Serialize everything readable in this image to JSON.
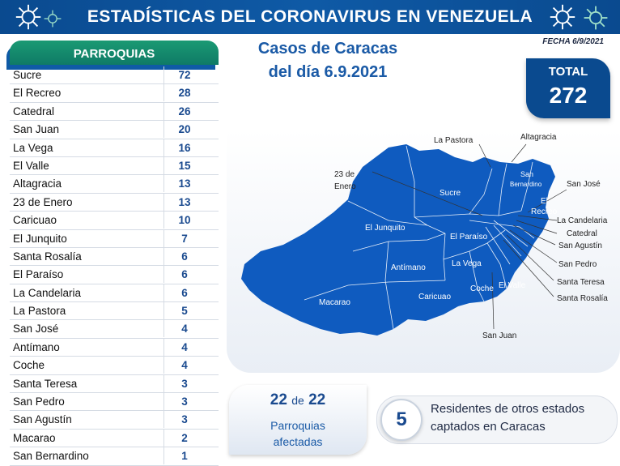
{
  "header": {
    "title": "ESTADÍSTICAS DEL CORONAVIRUS EN VENEZUELA"
  },
  "date_label": "FECHA 6/9/2021",
  "table": {
    "header": "PARROQUIAS",
    "rows": [
      {
        "name": "Sucre",
        "value": "72"
      },
      {
        "name": "El Recreo",
        "value": "28"
      },
      {
        "name": "Catedral",
        "value": "26"
      },
      {
        "name": "San Juan",
        "value": "20"
      },
      {
        "name": "La Vega",
        "value": "16"
      },
      {
        "name": "El Valle",
        "value": "15"
      },
      {
        "name": "Altagracia",
        "value": "13"
      },
      {
        "name": "23 de Enero",
        "value": "13"
      },
      {
        "name": "Caricuao",
        "value": "10"
      },
      {
        "name": "El Junquito",
        "value": "7"
      },
      {
        "name": "Santa Rosalía",
        "value": "6"
      },
      {
        "name": "El Paraíso",
        "value": "6"
      },
      {
        "name": "La Candelaria",
        "value": "6"
      },
      {
        "name": "La Pastora",
        "value": "5"
      },
      {
        "name": "San José",
        "value": "4"
      },
      {
        "name": "Antímano",
        "value": "4"
      },
      {
        "name": "Coche",
        "value": "4"
      },
      {
        "name": "Santa Teresa",
        "value": "3"
      },
      {
        "name": "San Pedro",
        "value": "3"
      },
      {
        "name": "San Agustín",
        "value": "3"
      },
      {
        "name": "Macarao",
        "value": "2"
      },
      {
        "name": "San Bernardino",
        "value": "1"
      }
    ]
  },
  "caracas": {
    "line1": "Casos de Caracas",
    "line2": "del día 6.9.2021"
  },
  "total": {
    "label": "TOTAL",
    "value": "272"
  },
  "map": {
    "labels_outside": {
      "la_pastora": "La Pastora",
      "altagracia": "Altagracia",
      "enero_1": "23 de",
      "enero_2": "Enero",
      "san_jose": "San José",
      "la_candelaria": "La Candelaria",
      "catedral": "Catedral",
      "san_agustin": "San Agustín",
      "san_pedro": "San Pedro",
      "santa_teresa": "Santa Teresa",
      "santa_rosalia": "Santa Rosalía",
      "san_juan": "San Juan"
    },
    "labels_inside": {
      "sucre": "Sucre",
      "san_bernardino_1": "San",
      "san_bernardino_2": "Bernardino",
      "el_recreo_1": "El",
      "el_recreo_2": "Recreo",
      "el_junquito": "El Junquito",
      "el_paraiso": "El Paraíso",
      "antimano": "Antímano",
      "la_vega": "La Vega",
      "macarao": "Macarao",
      "caricuao": "Caricuao",
      "coche": "Coche",
      "el_valle": "El Valle"
    },
    "fill_color": "#0f5bbf"
  },
  "parroquias": {
    "count": "22",
    "of": "de",
    "total": "22",
    "line1": "Parroquias",
    "line2": "afectadas"
  },
  "residents": {
    "number": "5",
    "text": "Residentes de otros estados captados en Caracas"
  }
}
